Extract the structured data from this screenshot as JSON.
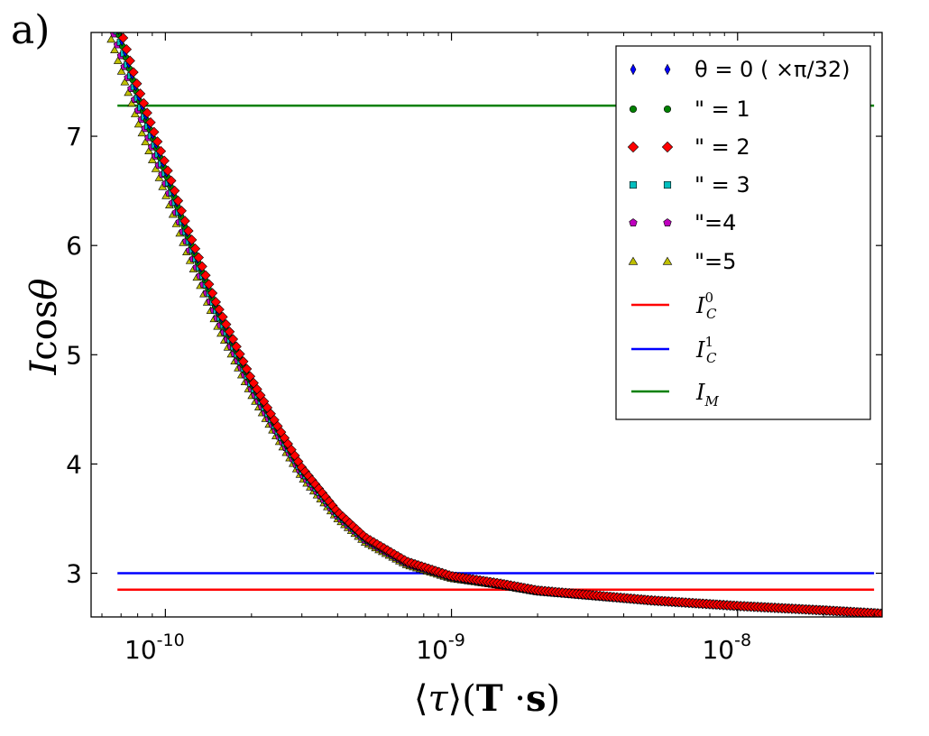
{
  "panel_label": "a)",
  "chart_data": {
    "type": "scatter",
    "xlabel": "⟨τ⟩(T·s)",
    "ylabel": "Icosθ",
    "xscale": "log",
    "xlim": [
      5.5e-11,
      3.2e-08
    ],
    "ylim": [
      2.6,
      7.95
    ],
    "x_ticks": [
      {
        "value": 1e-10,
        "base": "10",
        "exp": "-10"
      },
      {
        "value": 1e-09,
        "base": "10",
        "exp": "-9"
      },
      {
        "value": 1e-08,
        "base": "10",
        "exp": "-8"
      }
    ],
    "y_ticks": [
      3,
      4,
      5,
      6,
      7
    ],
    "legend_position": "top-right",
    "series": [
      {
        "name": "θ = 0 ( ×π/32)",
        "marker": "thin-diamond",
        "color": "#0000ff",
        "shift": 0.0
      },
      {
        "name": "\" = 1",
        "marker": "circle",
        "color": "#008000",
        "shift": -0.015
      },
      {
        "name": "\" = 2",
        "marker": "diamond",
        "color": "#ff0000",
        "shift": 0.03
      },
      {
        "name": "\" = 3",
        "marker": "square",
        "color": "#00bfbf",
        "shift": -0.03
      },
      {
        "name": "\"=4",
        "marker": "pentagon",
        "color": "#bf00bf",
        "shift": -0.08
      },
      {
        "name": "\"=5",
        "marker": "triangle",
        "color": "#bfbf00",
        "shift": -0.14
      }
    ],
    "curve_points": [
      [
        5.5e-11,
        8.8
      ],
      [
        7e-11,
        7.9
      ],
      [
        8e-11,
        7.4
      ],
      [
        1e-10,
        6.7
      ],
      [
        1.2e-10,
        6.1
      ],
      [
        1.5e-10,
        5.45
      ],
      [
        2e-10,
        4.75
      ],
      [
        2.5e-10,
        4.3
      ],
      [
        3e-10,
        3.95
      ],
      [
        4e-10,
        3.55
      ],
      [
        5e-10,
        3.32
      ],
      [
        7e-10,
        3.1
      ],
      [
        1e-09,
        2.97
      ],
      [
        1.5e-09,
        2.9
      ],
      [
        2e-09,
        2.84
      ],
      [
        3e-09,
        2.8
      ],
      [
        5e-09,
        2.75
      ],
      [
        1e-08,
        2.7
      ],
      [
        2e-08,
        2.66
      ],
      [
        3.2e-08,
        2.63
      ]
    ],
    "x_start": 5.5e-11,
    "x_end": 3.2e-08,
    "marker_spacing": 0.012,
    "hlines": [
      {
        "name": "I_C^0",
        "label_main": "I",
        "label_sub": "C",
        "label_sup": "0",
        "y": 2.85,
        "color": "#ff0000",
        "xmin": 6.8e-11,
        "xmax": 3e-08
      },
      {
        "name": "I_C^1",
        "label_main": "I",
        "label_sub": "C",
        "label_sup": "1",
        "y": 3.0,
        "color": "#0000ff",
        "xmin": 6.8e-11,
        "xmax": 3e-08
      },
      {
        "name": "I_M",
        "label_main": "I",
        "label_sub": "M",
        "label_sup": "",
        "y": 7.28,
        "color": "#008000",
        "xmin": 6.8e-11,
        "xmax": 3e-08
      }
    ]
  }
}
